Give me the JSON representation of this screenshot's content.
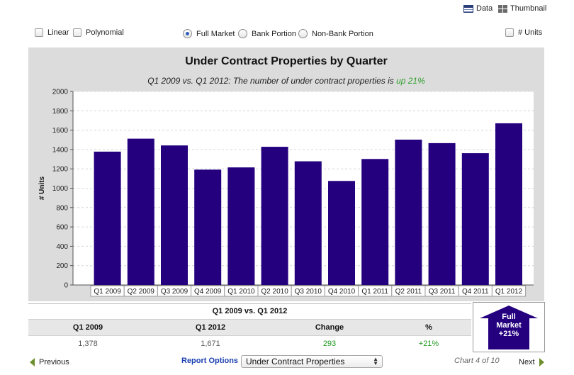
{
  "view": {
    "data_label": "Data",
    "thumbnail_label": "Thumbnail"
  },
  "options": {
    "linear": {
      "label": "Linear",
      "checked": false
    },
    "polynomial": {
      "label": "Polynomial",
      "checked": false
    },
    "full_market": {
      "label": "Full Market",
      "selected": true
    },
    "bank_portion": {
      "label": "Bank Portion",
      "selected": false
    },
    "non_bank_portion": {
      "label": "Non-Bank Portion",
      "selected": false
    },
    "units": {
      "label": "# Units",
      "checked": false
    }
  },
  "chart_subtitle": {
    "prefix": "Q1 2009 vs. Q1 2012: The number of under contract properties is ",
    "highlight": "up 21%"
  },
  "chart_data": {
    "type": "bar",
    "title": "Under Contract Properties by Quarter",
    "xlabel": "",
    "ylabel": "# Units",
    "ylim": [
      0,
      2000
    ],
    "yticks": [
      0,
      200,
      400,
      600,
      800,
      1000,
      1200,
      1400,
      1600,
      1800,
      2000
    ],
    "grid": true,
    "categories": [
      "Q1 2009",
      "Q2 2009",
      "Q3 2009",
      "Q4 2009",
      "Q1 2010",
      "Q2 2010",
      "Q3 2010",
      "Q4 2010",
      "Q1 2011",
      "Q2 2011",
      "Q3 2011",
      "Q4 2011",
      "Q1 2012"
    ],
    "values": [
      1378,
      1512,
      1442,
      1192,
      1215,
      1428,
      1278,
      1075,
      1302,
      1502,
      1466,
      1362,
      1671
    ],
    "bar_color": "#24007f"
  },
  "comparison": {
    "title": "Q1 2009 vs. Q1 2012",
    "headers": [
      "Q1 2009",
      "Q1 2012",
      "Change",
      "%"
    ],
    "values": [
      "1,378",
      "1,671",
      "293",
      "+21%"
    ]
  },
  "badge": {
    "line1": "Full",
    "line2": "Market",
    "line3": "+21%"
  },
  "footer": {
    "previous_label": "Previous",
    "report_options_label": "Report Options",
    "report_select_value": "Under Contract Properties",
    "chart_counter": "Chart 4 of 10",
    "next_label": "Next"
  },
  "colors": {
    "accent_green": "#2e9e2e",
    "link_blue": "#1a3fb0",
    "badge_blue": "#24007f",
    "nav_green": "#6e8f2e"
  }
}
